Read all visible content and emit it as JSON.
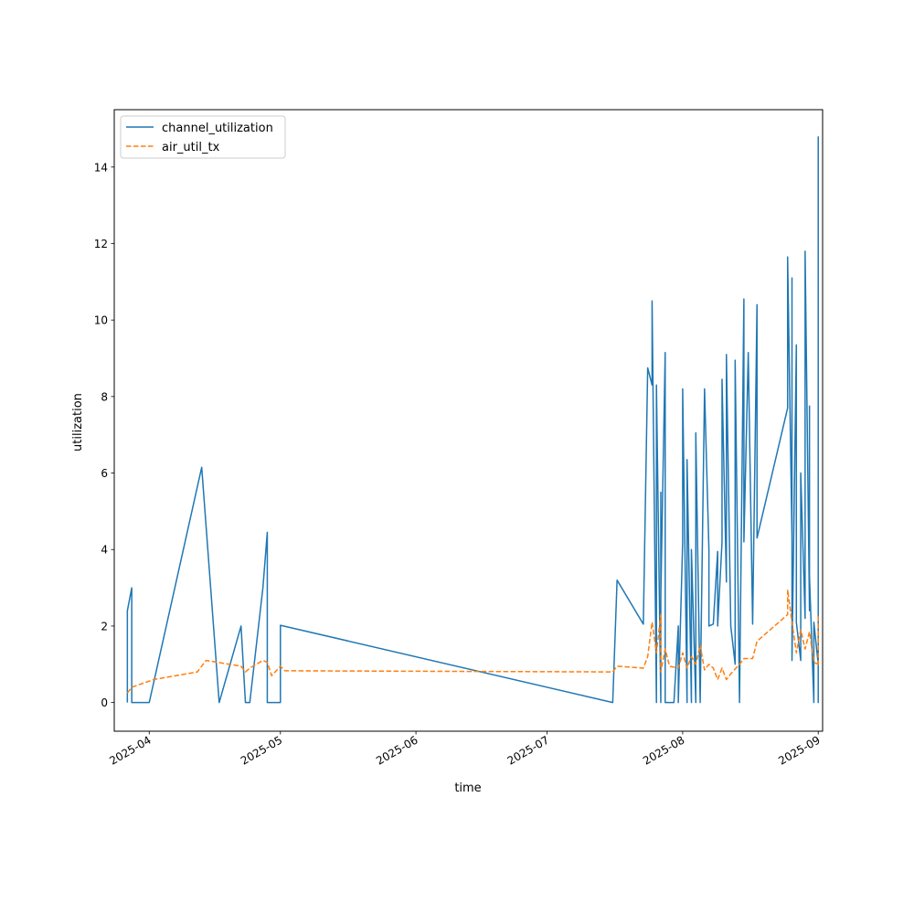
{
  "chart_data": {
    "type": "line",
    "title": "",
    "xlabel": "time",
    "ylabel": "utilization",
    "x_tick_labels": [
      "2025-04",
      "2025-05",
      "2025-06",
      "2025-07",
      "2025-08",
      "2025-09"
    ],
    "y_ticks": [
      0,
      2,
      4,
      6,
      8,
      10,
      12,
      14
    ],
    "xlim": [
      "2025-03-24",
      "2025-09-02"
    ],
    "ylim": [
      -0.75,
      15.5
    ],
    "grid": false,
    "legend_position": "upper-left",
    "colors": {
      "channel_utilization": "#1f77b4",
      "air_util_tx": "#ff7f0e"
    },
    "series": [
      {
        "name": "channel_utilization",
        "style": "solid",
        "points": [
          [
            "2025-03-27",
            0
          ],
          [
            "2025-03-27",
            2.4
          ],
          [
            "2025-03-28",
            3.0
          ],
          [
            "2025-03-28",
            0
          ],
          [
            "2025-04-01",
            0
          ],
          [
            "2025-04-13",
            6.15
          ],
          [
            "2025-04-17",
            0
          ],
          [
            "2025-04-22",
            2.0
          ],
          [
            "2025-04-23",
            0
          ],
          [
            "2025-04-24",
            0
          ],
          [
            "2025-04-27",
            3.0
          ],
          [
            "2025-04-28",
            4.45
          ],
          [
            "2025-04-28",
            0
          ],
          [
            "2025-04-30",
            0
          ],
          [
            "2025-05-01",
            0
          ],
          [
            "2025-05-01",
            2.02
          ],
          [
            "2025-07-16",
            0
          ],
          [
            "2025-07-17",
            3.2
          ],
          [
            "2025-07-23",
            2.05
          ],
          [
            "2025-07-24",
            8.75
          ],
          [
            "2025-07-25",
            8.3
          ],
          [
            "2025-07-25",
            10.5
          ],
          [
            "2025-07-26",
            0
          ],
          [
            "2025-07-26",
            8.3
          ],
          [
            "2025-07-27",
            0
          ],
          [
            "2025-07-27",
            5.5
          ],
          [
            "2025-07-27",
            2.8
          ],
          [
            "2025-07-28",
            9.15
          ],
          [
            "2025-07-28",
            0
          ],
          [
            "2025-07-30",
            0
          ],
          [
            "2025-07-31",
            2.0
          ],
          [
            "2025-07-31",
            0
          ],
          [
            "2025-08-01",
            4.2
          ],
          [
            "2025-08-01",
            8.2
          ],
          [
            "2025-08-02",
            0
          ],
          [
            "2025-08-02",
            6.35
          ],
          [
            "2025-08-03",
            0
          ],
          [
            "2025-08-03",
            4.0
          ],
          [
            "2025-08-04",
            0
          ],
          [
            "2025-08-04",
            7.05
          ],
          [
            "2025-08-05",
            0
          ],
          [
            "2025-08-05",
            0
          ],
          [
            "2025-08-06",
            8.2
          ],
          [
            "2025-08-07",
            4.0
          ],
          [
            "2025-08-07",
            2.0
          ],
          [
            "2025-08-08",
            2.05
          ],
          [
            "2025-08-09",
            3.95
          ],
          [
            "2025-08-09",
            2.0
          ],
          [
            "2025-08-10",
            4.2
          ],
          [
            "2025-08-10",
            8.45
          ],
          [
            "2025-08-11",
            3.15
          ],
          [
            "2025-08-11",
            9.1
          ],
          [
            "2025-08-12",
            2.0
          ],
          [
            "2025-08-13",
            1.0
          ],
          [
            "2025-08-13",
            8.95
          ],
          [
            "2025-08-14",
            0
          ],
          [
            "2025-08-14",
            0
          ],
          [
            "2025-08-15",
            10.55
          ],
          [
            "2025-08-15",
            4.2
          ],
          [
            "2025-08-16",
            9.15
          ],
          [
            "2025-08-17",
            2.05
          ],
          [
            "2025-08-18",
            10.4
          ],
          [
            "2025-08-18",
            4.3
          ],
          [
            "2025-08-25",
            7.7
          ],
          [
            "2025-08-25",
            11.65
          ],
          [
            "2025-08-26",
            4.3
          ],
          [
            "2025-08-26",
            11.1
          ],
          [
            "2025-08-26",
            1.1
          ],
          [
            "2025-08-27",
            9.35
          ],
          [
            "2025-08-27",
            2.1
          ],
          [
            "2025-08-28",
            1.1
          ],
          [
            "2025-08-28",
            6.0
          ],
          [
            "2025-08-29",
            2.2
          ],
          [
            "2025-08-29",
            11.8
          ],
          [
            "2025-08-30",
            2.4
          ],
          [
            "2025-08-30",
            7.75
          ],
          [
            "2025-08-30",
            3.3
          ],
          [
            "2025-08-31",
            0
          ],
          [
            "2025-08-31",
            2.1
          ],
          [
            "2025-09-01",
            1.0
          ],
          [
            "2025-09-01",
            0
          ],
          [
            "2025-09-01",
            7.0
          ],
          [
            "2025-09-01",
            14.8
          ]
        ]
      },
      {
        "name": "air_util_tx",
        "style": "dashed",
        "points": [
          [
            "2025-03-27",
            0.25
          ],
          [
            "2025-03-28",
            0.4
          ],
          [
            "2025-04-02",
            0.6
          ],
          [
            "2025-04-12",
            0.8
          ],
          [
            "2025-04-14",
            1.1
          ],
          [
            "2025-04-22",
            0.95
          ],
          [
            "2025-04-23",
            0.8
          ],
          [
            "2025-04-24",
            0.9
          ],
          [
            "2025-04-27",
            1.1
          ],
          [
            "2025-04-28",
            1.05
          ],
          [
            "2025-04-29",
            0.7
          ],
          [
            "2025-05-01",
            0.95
          ],
          [
            "2025-05-02",
            0.83
          ],
          [
            "2025-07-16",
            0.8
          ],
          [
            "2025-07-17",
            0.95
          ],
          [
            "2025-07-23",
            0.9
          ],
          [
            "2025-07-24",
            1.2
          ],
          [
            "2025-07-25",
            2.1
          ],
          [
            "2025-07-26",
            1.3
          ],
          [
            "2025-07-27",
            2.3
          ],
          [
            "2025-07-27",
            0.8
          ],
          [
            "2025-07-28",
            1.4
          ],
          [
            "2025-07-29",
            0.95
          ],
          [
            "2025-07-31",
            0.9
          ],
          [
            "2025-08-01",
            1.3
          ],
          [
            "2025-08-02",
            0.9
          ],
          [
            "2025-08-03",
            1.2
          ],
          [
            "2025-08-04",
            1.0
          ],
          [
            "2025-08-05",
            1.5
          ],
          [
            "2025-08-06",
            0.85
          ],
          [
            "2025-08-07",
            1.0
          ],
          [
            "2025-08-08",
            0.9
          ],
          [
            "2025-08-09",
            0.6
          ],
          [
            "2025-08-10",
            0.9
          ],
          [
            "2025-08-11",
            0.6
          ],
          [
            "2025-08-12",
            0.75
          ],
          [
            "2025-08-14",
            1.0
          ],
          [
            "2025-08-15",
            1.15
          ],
          [
            "2025-08-17",
            1.15
          ],
          [
            "2025-08-18",
            1.6
          ],
          [
            "2025-08-22",
            2.0
          ],
          [
            "2025-08-25",
            2.3
          ],
          [
            "2025-08-25",
            2.95
          ],
          [
            "2025-08-26",
            2.1
          ],
          [
            "2025-08-27",
            1.3
          ],
          [
            "2025-08-28",
            1.9
          ],
          [
            "2025-08-29",
            1.4
          ],
          [
            "2025-08-30",
            1.85
          ],
          [
            "2025-08-31",
            1.05
          ],
          [
            "2025-09-01",
            1.0
          ],
          [
            "2025-09-01",
            0.95
          ],
          [
            "2025-09-01",
            2.3
          ]
        ]
      }
    ]
  }
}
